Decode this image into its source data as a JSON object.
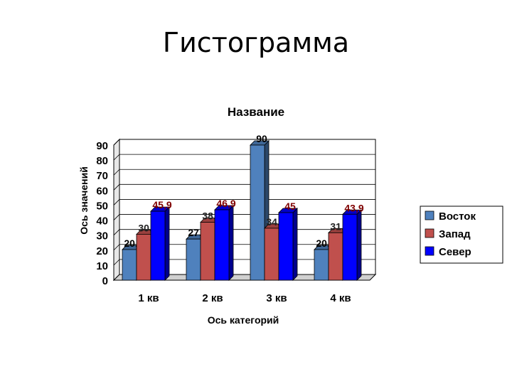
{
  "slide": {
    "title": "Гистограмма"
  },
  "chart_data": {
    "type": "bar",
    "title": "Название",
    "xlabel": "Ось категорий",
    "ylabel": "Ось значений",
    "categories": [
      "1 кв",
      "2 кв",
      "3 кв",
      "4 кв"
    ],
    "series": [
      {
        "name": "Восток",
        "values": [
          20.4,
          27.4,
          90,
          20.4
        ],
        "labels": [
          "20,4",
          "27,4",
          "90",
          "20,4"
        ],
        "color": "#4F81BD"
      },
      {
        "name": "Запад",
        "values": [
          30.6,
          38.6,
          34.6,
          31.6
        ],
        "labels": [
          "30,6",
          "38,6",
          "34,6",
          "31,6"
        ],
        "color": "#C0504D"
      },
      {
        "name": "Север",
        "values": [
          45.9,
          46.9,
          45,
          43.9
        ],
        "labels": [
          "45,9",
          "46,9",
          "45",
          "43,9"
        ],
        "color": "#0000FF"
      }
    ],
    "ylim": [
      0,
      90
    ],
    "yticks": [
      0,
      10,
      20,
      30,
      40,
      50,
      60,
      70,
      80,
      90
    ],
    "grid": true,
    "legend": "right"
  }
}
